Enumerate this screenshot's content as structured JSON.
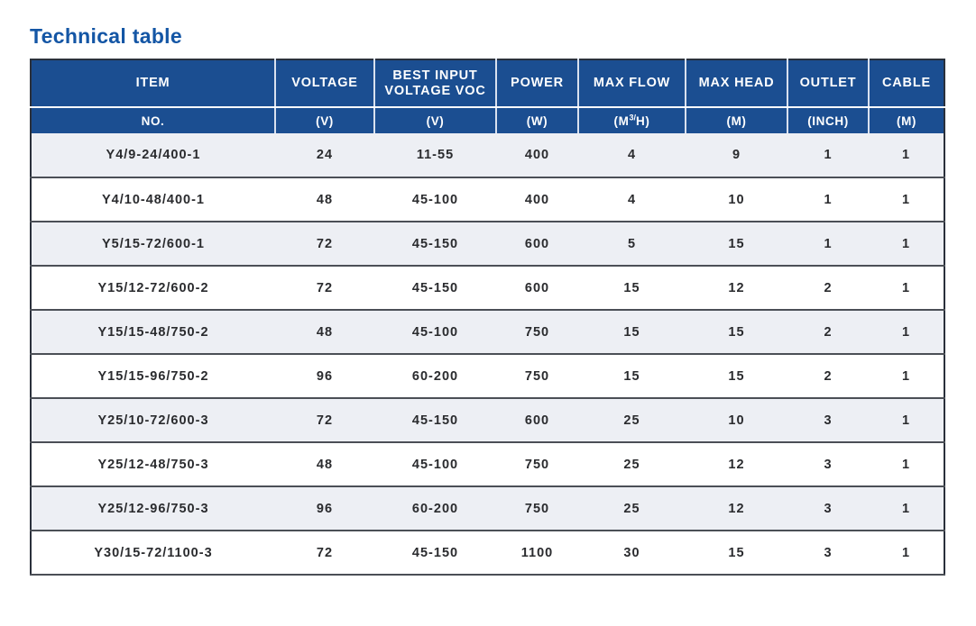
{
  "page": {
    "title": "Technical table"
  },
  "colors": {
    "title_blue": "#1456a5",
    "header_blue": "#1b4e91",
    "header_text": "#ffffff",
    "row_alt_bg": "#edeff4",
    "row_bg": "#ffffff",
    "row_divider": "#4b4f56",
    "outer_border": "#2a303b",
    "body_text": "#2a2b2e"
  },
  "table": {
    "columns": [
      {
        "key": "item",
        "label": "ITEM",
        "unit_parts": [
          {
            "t": "NO."
          }
        ]
      },
      {
        "key": "voltage",
        "label": "VOLTAGE",
        "unit_parts": [
          {
            "t": "(V)"
          }
        ]
      },
      {
        "key": "best-input-voltage-voc",
        "label": "BEST INPUT VOLTAGE VOC",
        "unit_parts": [
          {
            "t": "(V)"
          }
        ]
      },
      {
        "key": "power",
        "label": "POWER",
        "unit_parts": [
          {
            "t": "(W)"
          }
        ]
      },
      {
        "key": "max-flow",
        "label": "MAX FLOW",
        "unit_parts": [
          {
            "t": "(M"
          },
          {
            "t": "3/",
            "sup": true
          },
          {
            "t": "H)"
          }
        ]
      },
      {
        "key": "max-head",
        "label": "MAX HEAD",
        "unit_parts": [
          {
            "t": "(M)"
          }
        ]
      },
      {
        "key": "outlet",
        "label": "OUTLET",
        "unit_parts": [
          {
            "t": "(INCH)"
          }
        ]
      },
      {
        "key": "cable",
        "label": "CABLE",
        "unit_parts": [
          {
            "t": "(M)"
          }
        ]
      }
    ],
    "rows": [
      [
        "Y4/9-24/400-1",
        "24",
        "11-55",
        "400",
        "4",
        "9",
        "1",
        "1"
      ],
      [
        "Y4/10-48/400-1",
        "48",
        "45-100",
        "400",
        "4",
        "10",
        "1",
        "1"
      ],
      [
        "Y5/15-72/600-1",
        "72",
        "45-150",
        "600",
        "5",
        "15",
        "1",
        "1"
      ],
      [
        "Y15/12-72/600-2",
        "72",
        "45-150",
        "600",
        "15",
        "12",
        "2",
        "1"
      ],
      [
        "Y15/15-48/750-2",
        "48",
        "45-100",
        "750",
        "15",
        "15",
        "2",
        "1"
      ],
      [
        "Y15/15-96/750-2",
        "96",
        "60-200",
        "750",
        "15",
        "15",
        "2",
        "1"
      ],
      [
        "Y25/10-72/600-3",
        "72",
        "45-150",
        "600",
        "25",
        "10",
        "3",
        "1"
      ],
      [
        "Y25/12-48/750-3",
        "48",
        "45-100",
        "750",
        "25",
        "12",
        "3",
        "1"
      ],
      [
        "Y25/12-96/750-3",
        "96",
        "60-200",
        "750",
        "25",
        "12",
        "3",
        "1"
      ],
      [
        "Y30/15-72/1100-3",
        "72",
        "45-150",
        "1100",
        "30",
        "15",
        "3",
        "1"
      ]
    ]
  }
}
